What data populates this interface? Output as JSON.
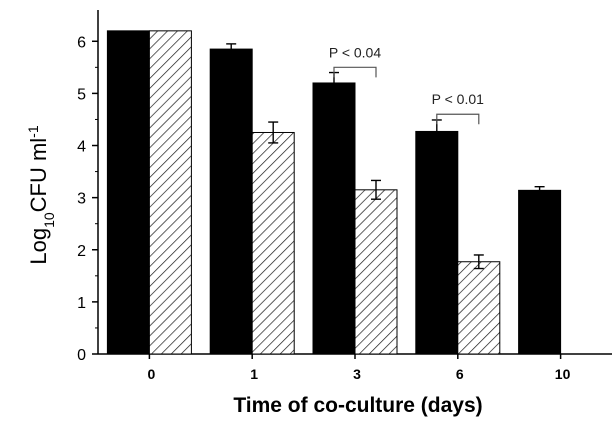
{
  "chart_data": {
    "type": "bar",
    "xlabel": "Time of co-culture (days)",
    "ylabel": {
      "base": "Log",
      "sub": "10",
      "main": "CFU ml",
      "sup": "-1"
    },
    "categories": [
      "0",
      "1",
      "3",
      "6",
      "10"
    ],
    "ylim": [
      0,
      6.6
    ],
    "yticks": [
      "0",
      "1",
      "2",
      "3",
      "4",
      "5",
      "6"
    ],
    "grid": false,
    "series": [
      {
        "fill": "solid",
        "color": "#000000",
        "values": [
          6.2,
          5.85,
          5.2,
          4.27,
          3.14
        ],
        "errors": [
          0,
          0.1,
          0.2,
          0.22,
          0.07
        ]
      },
      {
        "fill": "hatched",
        "color": "#ffffff",
        "values": [
          6.2,
          4.25,
          3.15,
          1.77,
          null
        ],
        "errors": [
          0,
          0.2,
          0.18,
          0.13,
          null
        ]
      }
    ],
    "annotations": [
      {
        "text": "P < 0.04",
        "category": "3",
        "bracket_value": 5.5
      },
      {
        "text": "P < 0.01",
        "category": "6",
        "bracket_value": 4.6
      }
    ]
  }
}
